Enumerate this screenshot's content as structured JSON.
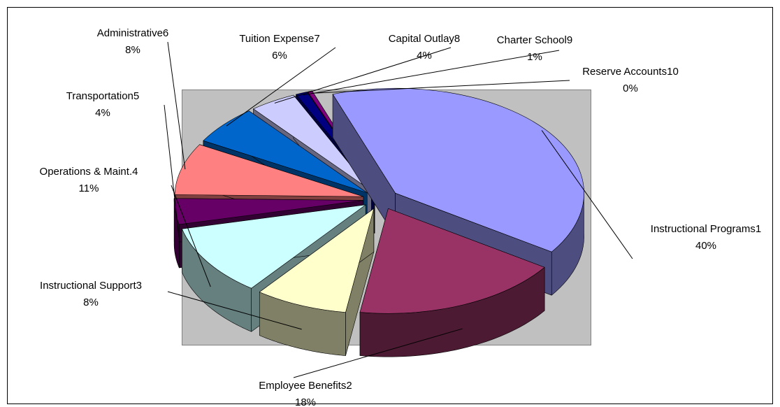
{
  "chart_data": {
    "type": "pie",
    "categories": [
      "Instructional Programs1",
      "Employee Benefits2",
      "Instructional Support3",
      "Operations & Maint.4",
      "Transportation5",
      "Administrative6",
      "Tuition Expense7",
      "Capital Outlay8",
      "Charter School9",
      "Reserve Accounts10"
    ],
    "values": [
      40,
      18,
      8,
      11,
      4,
      8,
      6,
      4,
      1,
      0.4
    ],
    "value_labels": [
      "40%",
      "18%",
      "8%",
      "11%",
      "4%",
      "8%",
      "6%",
      "4%",
      "1%",
      "0%"
    ],
    "colors": [
      "#9999ff",
      "#993366",
      "#ffffcc",
      "#ccffff",
      "#660066",
      "#ff8080",
      "#0066cc",
      "#ccccff",
      "#000080",
      "#800080"
    ]
  }
}
